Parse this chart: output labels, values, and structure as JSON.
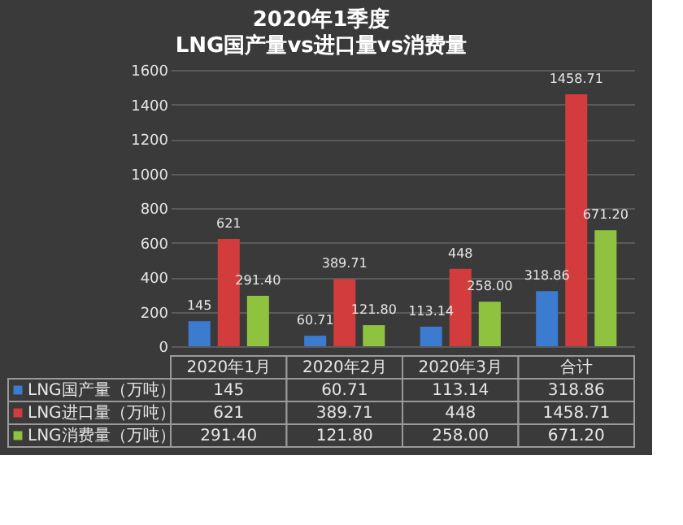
{
  "chart_data": {
    "type": "bar",
    "title": "2020年1季度",
    "subtitle": "LNG国产量vs进口量vs消费量",
    "categories": [
      "2020年1月",
      "2020年2月",
      "2020年3月",
      "合计"
    ],
    "series": [
      {
        "name": "LNG国产量（万吨）",
        "color": "#3b7bd0",
        "values": [
          145,
          60.71,
          113.14,
          318.86
        ],
        "value_labels": [
          "145",
          "60.71",
          "113.14",
          "318.86"
        ]
      },
      {
        "name": "LNG进口量（万吨）",
        "color": "#d23c3c",
        "values": [
          621,
          389.71,
          448,
          1458.71
        ],
        "value_labels": [
          "621",
          "389.71",
          "448",
          "1458.71"
        ]
      },
      {
        "name": "LNG消费量（万吨）",
        "color": "#8fc23e",
        "values": [
          291.4,
          121.8,
          258.0,
          671.2
        ],
        "value_labels": [
          "291.40",
          "121.80",
          "258.00",
          "671.20"
        ]
      }
    ],
    "ylim": [
      0,
      1600
    ],
    "yticks": [
      0,
      200,
      400,
      600,
      800,
      1000,
      1200,
      1400,
      1600
    ],
    "grid": "y",
    "legend": "bottom",
    "tick_labels": "y"
  }
}
